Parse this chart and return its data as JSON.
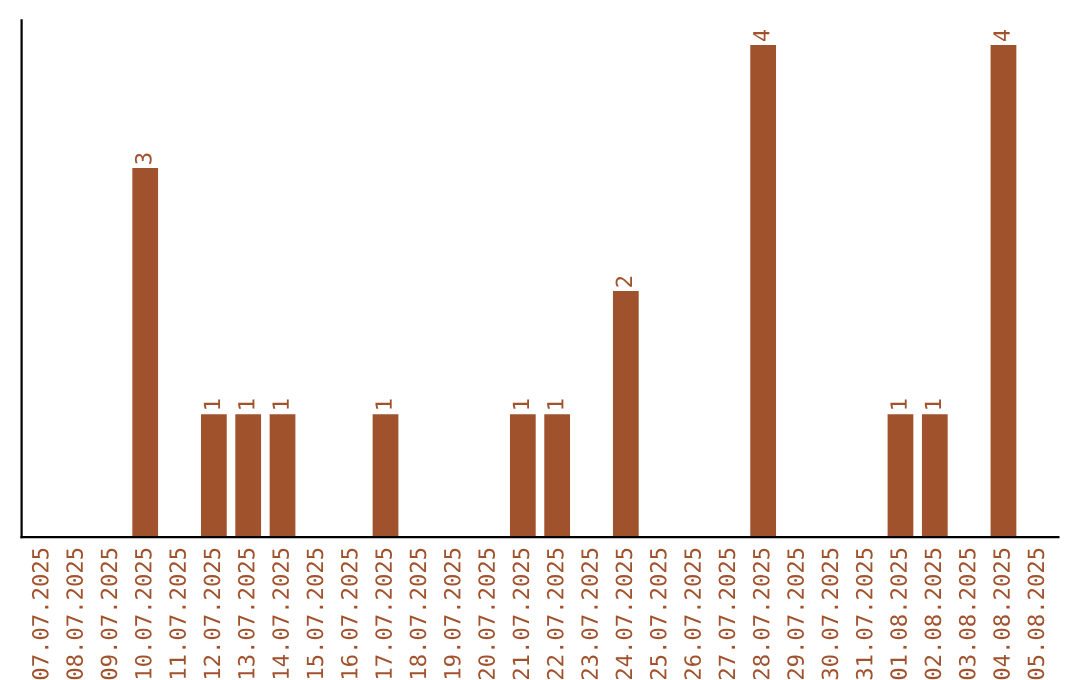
{
  "chart_data": {
    "type": "bar",
    "categories": [
      "07.07.2025",
      "08.07.2025",
      "09.07.2025",
      "10.07.2025",
      "11.07.2025",
      "12.07.2025",
      "13.07.2025",
      "14.07.2025",
      "15.07.2025",
      "16.07.2025",
      "17.07.2025",
      "18.07.2025",
      "19.07.2025",
      "20.07.2025",
      "21.07.2025",
      "22.07.2025",
      "23.07.2025",
      "24.07.2025",
      "25.07.2025",
      "26.07.2025",
      "27.07.2025",
      "28.07.2025",
      "29.07.2025",
      "30.07.2025",
      "31.07.2025",
      "01.08.2025",
      "02.08.2025",
      "03.08.2025",
      "04.08.2025",
      "05.08.2025"
    ],
    "values": [
      null,
      null,
      null,
      3,
      null,
      1,
      1,
      1,
      null,
      null,
      1,
      null,
      null,
      null,
      1,
      1,
      null,
      2,
      null,
      null,
      null,
      4,
      null,
      null,
      null,
      1,
      1,
      null,
      4,
      null
    ],
    "color": "#a0522d",
    "data_labels": true,
    "tick_labels": "x",
    "grid": false,
    "legend": false
  }
}
